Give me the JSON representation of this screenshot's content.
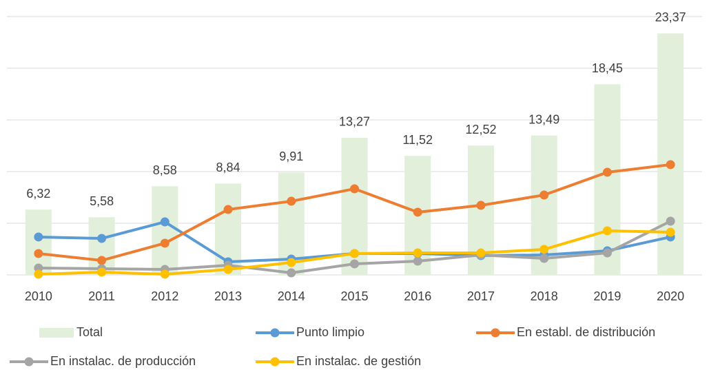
{
  "chart_data": {
    "type": "combo",
    "categories": [
      "2010",
      "2011",
      "2012",
      "2013",
      "2014",
      "2015",
      "2016",
      "2017",
      "2018",
      "2019",
      "2020"
    ],
    "ylim": [
      0,
      25
    ],
    "yticks": [
      0,
      5,
      10,
      15,
      20,
      25
    ],
    "grid": true,
    "series": [
      {
        "name": "Total",
        "type": "bar",
        "color": "#e2efda",
        "values": [
          6.32,
          5.58,
          8.58,
          8.84,
          9.91,
          13.27,
          11.52,
          12.52,
          13.49,
          18.45,
          23.37
        ],
        "value_labels": [
          "6,32",
          "5,58",
          "8,58",
          "8,84",
          "9,91",
          "13,27",
          "11,52",
          "12,52",
          "13,49",
          "18,45",
          "23,37"
        ]
      },
      {
        "name": "Punto limpio",
        "type": "line",
        "color": "#5b9bd5",
        "values": [
          3.67,
          3.53,
          5.13,
          1.27,
          1.53,
          2.07,
          2.07,
          1.87,
          1.93,
          2.33,
          3.67
        ]
      },
      {
        "name": "En establ. de distribución",
        "type": "line",
        "color": "#ed7d31",
        "values": [
          2.07,
          1.4,
          3.07,
          6.33,
          7.13,
          8.33,
          6.07,
          6.73,
          7.73,
          9.93,
          10.67
        ]
      },
      {
        "name": "En instalac. de producción",
        "type": "line",
        "color": "#a5a5a5",
        "values": [
          0.67,
          0.6,
          0.53,
          0.93,
          0.2,
          1.07,
          1.33,
          1.93,
          1.6,
          2.13,
          5.2
        ]
      },
      {
        "name": "En instalac. de gestión",
        "type": "line",
        "color": "#ffc000",
        "values": [
          0.07,
          0.27,
          0.07,
          0.53,
          1.2,
          2.07,
          2.13,
          2.13,
          2.47,
          4.27,
          4.13
        ]
      }
    ]
  }
}
